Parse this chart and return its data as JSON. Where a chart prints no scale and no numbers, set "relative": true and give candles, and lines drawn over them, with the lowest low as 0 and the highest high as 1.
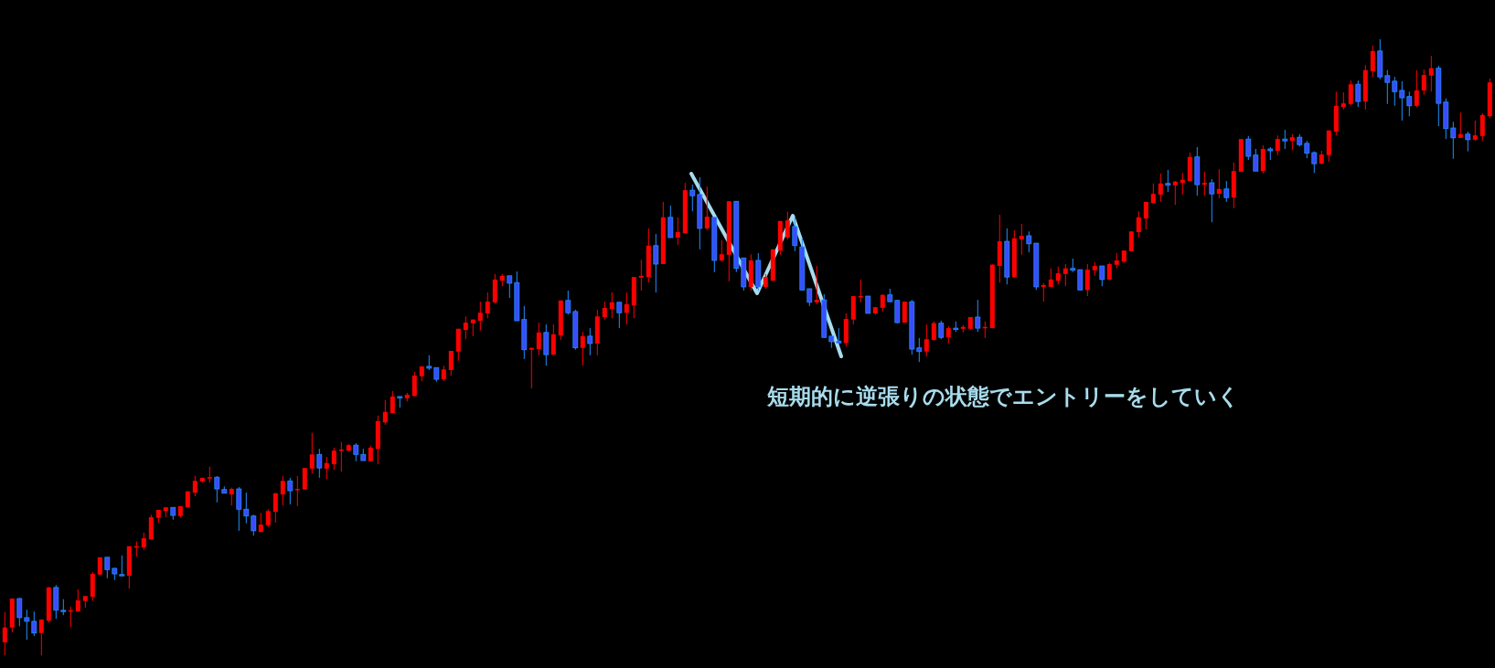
{
  "chart_data": {
    "type": "candlestick",
    "relative": true,
    "annotations": [
      "短期的に逆張りの状態でエントリーをしていく"
    ],
    "categories": [
      null,
      null,
      null,
      null,
      null,
      null,
      null,
      null,
      null,
      null,
      null,
      null,
      null,
      null,
      null,
      null,
      null,
      null,
      null,
      null,
      null,
      null,
      null,
      null,
      null,
      null,
      null,
      null,
      null,
      null,
      null,
      null,
      null,
      null,
      null,
      null,
      null,
      null,
      null,
      null,
      null,
      null,
      null,
      null,
      null,
      null,
      null,
      null,
      null,
      null,
      null,
      null,
      null,
      null,
      null,
      null,
      null,
      null,
      null,
      null,
      null,
      null,
      null,
      null,
      null,
      null,
      null,
      null,
      null,
      null,
      null,
      null,
      null,
      null,
      null,
      null,
      null,
      null,
      null,
      null,
      null,
      null,
      null,
      null,
      null,
      null,
      null,
      null,
      null,
      null,
      null,
      null,
      null,
      null,
      null,
      null,
      null,
      null,
      null,
      null,
      null,
      null,
      null,
      null,
      null,
      null,
      null,
      null,
      null,
      null,
      null,
      null,
      null,
      null,
      null,
      null,
      null,
      null,
      null,
      null,
      null,
      null,
      null,
      null,
      null,
      null,
      null,
      null,
      null,
      null,
      null,
      null,
      null,
      null,
      null,
      null,
      null,
      null,
      null,
      null,
      null,
      null,
      null,
      null,
      null,
      null,
      null,
      null,
      null,
      null,
      null,
      null,
      null,
      null,
      null,
      null,
      null,
      null,
      null,
      null,
      null,
      null,
      null,
      null,
      null,
      null,
      null,
      null,
      null,
      null,
      null,
      null,
      null,
      null,
      null,
      null,
      null,
      null,
      null,
      null,
      null,
      null,
      null,
      null,
      null,
      null,
      null,
      null,
      null,
      null,
      null,
      null,
      null,
      null,
      null,
      null,
      null,
      null,
      null,
      null,
      null,
      null,
      null,
      null
    ],
    "ohlc": [
      [
        0.021,
        0.07,
        0,
        0.045
      ],
      [
        0.045,
        0.092,
        0.037,
        0.092
      ],
      [
        0.092,
        0.093,
        0.047,
        0.061
      ],
      [
        0.061,
        0.074,
        0.025,
        0.055
      ],
      [
        0.055,
        0.071,
        0.031,
        0.036
      ],
      [
        0.036,
        0.058,
        0,
        0.058
      ],
      [
        0.056,
        0.111,
        0.053,
        0.11
      ],
      [
        0.11,
        0.114,
        0.059,
        0.073
      ],
      [
        0.073,
        0.091,
        0.065,
        0.071
      ],
      [
        0.071,
        0.079,
        0.046,
        0.073
      ],
      [
        0.071,
        0.107,
        0.071,
        0.089
      ],
      [
        0.088,
        0.096,
        0.077,
        0.096
      ],
      [
        0.095,
        0.135,
        0.088,
        0.132
      ],
      [
        0.131,
        0.159,
        0.131,
        0.159
      ],
      [
        0.159,
        0.159,
        0.125,
        0.139
      ],
      [
        0.141,
        0.142,
        0.122,
        0.132
      ],
      [
        0.131,
        0.162,
        0.129,
        0.13
      ],
      [
        0.129,
        0.177,
        0.108,
        0.177
      ],
      [
        0.175,
        0.185,
        0.16,
        0.177
      ],
      [
        0.175,
        0.199,
        0.171,
        0.19
      ],
      [
        0.188,
        0.228,
        0.188,
        0.224
      ],
      [
        0.223,
        0.236,
        0.215,
        0.236
      ],
      [
        0.234,
        0.24,
        0.224,
        0.24
      ],
      [
        0.24,
        0.24,
        0.22,
        0.227
      ],
      [
        0.226,
        0.242,
        0.224,
        0.242
      ],
      [
        0.24,
        0.266,
        0.24,
        0.266
      ],
      [
        0.264,
        0.291,
        0.258,
        0.283
      ],
      [
        0.282,
        0.288,
        0.28,
        0.288
      ],
      [
        0.288,
        0.306,
        0.28,
        0.289
      ],
      [
        0.289,
        0.291,
        0.248,
        0.27
      ],
      [
        0.269,
        0.274,
        0.263,
        0.263
      ],
      [
        0.261,
        0.272,
        0.243,
        0.27
      ],
      [
        0.27,
        0.273,
        0.202,
        0.237
      ],
      [
        0.237,
        0.264,
        0.214,
        0.226
      ],
      [
        0.226,
        0.228,
        0.194,
        0.202
      ],
      [
        0.2,
        0.231,
        0.2,
        0.212
      ],
      [
        0.211,
        0.237,
        0.208,
        0.234
      ],
      [
        0.233,
        0.263,
        0.215,
        0.263
      ],
      [
        0.261,
        0.291,
        0.243,
        0.283
      ],
      [
        0.283,
        0.288,
        0.245,
        0.267
      ],
      [
        0.269,
        0.291,
        0.242,
        0.27
      ],
      [
        0.269,
        0.304,
        0.269,
        0.304
      ],
      [
        0.303,
        0.361,
        0.295,
        0.326
      ],
      [
        0.326,
        0.335,
        0.288,
        0.304
      ],
      [
        0.303,
        0.322,
        0.286,
        0.312
      ],
      [
        0.31,
        0.337,
        0.301,
        0.332
      ],
      [
        0.332,
        0.346,
        0.298,
        0.334
      ],
      [
        0.332,
        0.343,
        0.331,
        0.341
      ],
      [
        0.341,
        0.344,
        0.315,
        0.326
      ],
      [
        0.326,
        0.335,
        0.316,
        0.316
      ],
      [
        0.315,
        0.34,
        0.315,
        0.337
      ],
      [
        0.335,
        0.389,
        0.31,
        0.38
      ],
      [
        0.378,
        0.414,
        0.374,
        0.395
      ],
      [
        0.393,
        0.429,
        0.393,
        0.42
      ],
      [
        0.42,
        0.42,
        0.402,
        0.418
      ],
      [
        0.417,
        0.426,
        0.412,
        0.423
      ],
      [
        0.421,
        0.46,
        0.42,
        0.454
      ],
      [
        0.453,
        0.469,
        0.445,
        0.469
      ],
      [
        0.469,
        0.487,
        0.463,
        0.466
      ],
      [
        0.467,
        0.467,
        0.444,
        0.448
      ],
      [
        0.448,
        0.47,
        0.445,
        0.464
      ],
      [
        0.463,
        0.494,
        0.454,
        0.494
      ],
      [
        0.493,
        0.53,
        0.478,
        0.53
      ],
      [
        0.528,
        0.55,
        0.513,
        0.54
      ],
      [
        0.539,
        0.545,
        0.518,
        0.545
      ],
      [
        0.543,
        0.574,
        0.527,
        0.556
      ],
      [
        0.555,
        0.589,
        0.547,
        0.574
      ],
      [
        0.573,
        0.619,
        0.571,
        0.61
      ],
      [
        0.608,
        0.619,
        0.599,
        0.616
      ],
      [
        0.616,
        0.616,
        0.58,
        0.604
      ],
      [
        0.605,
        0.623,
        0.543,
        0.543
      ],
      [
        0.545,
        0.567,
        0.481,
        0.496
      ],
      [
        0.496,
        0.499,
        0.433,
        0.499
      ],
      [
        0.497,
        0.54,
        0.487,
        0.524
      ],
      [
        0.524,
        0.537,
        0.47,
        0.488
      ],
      [
        0.488,
        0.537,
        0.487,
        0.521
      ],
      [
        0.519,
        0.576,
        0.512,
        0.576
      ],
      [
        0.576,
        0.592,
        0.553,
        0.556
      ],
      [
        0.558,
        0.561,
        0.496,
        0.499
      ],
      [
        0.499,
        0.525,
        0.47,
        0.518
      ],
      [
        0.518,
        0.531,
        0.487,
        0.506
      ],
      [
        0.506,
        0.561,
        0.487,
        0.55
      ],
      [
        0.549,
        0.574,
        0.545,
        0.564
      ],
      [
        0.562,
        0.589,
        0.547,
        0.573
      ],
      [
        0.573,
        0.573,
        0.531,
        0.556
      ],
      [
        0.556,
        0.589,
        0.537,
        0.57
      ],
      [
        0.568,
        0.614,
        0.547,
        0.614
      ],
      [
        0.613,
        0.642,
        0.592,
        0.616
      ],
      [
        0.614,
        0.693,
        0.605,
        0.665
      ],
      [
        0.665,
        0.684,
        0.589,
        0.635
      ],
      [
        0.635,
        0.736,
        0.635,
        0.711
      ],
      [
        0.711,
        0.73,
        0.678,
        0.678
      ],
      [
        0.678,
        0.711,
        0.666,
        0.687
      ],
      [
        0.685,
        0.767,
        0.685,
        0.755
      ],
      [
        0.755,
        0.764,
        0.721,
        0.746
      ],
      [
        0.748,
        0.776,
        0.659,
        0.693
      ],
      [
        0.693,
        0.761,
        0.69,
        0.712
      ],
      [
        0.711,
        0.711,
        0.622,
        0.641
      ],
      [
        0.641,
        0.674,
        0.639,
        0.651
      ],
      [
        0.65,
        0.737,
        0.607,
        0.737
      ],
      [
        0.737,
        0.737,
        0.622,
        0.628
      ],
      [
        0.645,
        0.645,
        0.592,
        0.598
      ],
      [
        0.598,
        0.651,
        0.592,
        0.641
      ],
      [
        0.641,
        0.653,
        0.592,
        0.598
      ],
      [
        0.598,
        0.619,
        0.595,
        0.614
      ],
      [
        0.608,
        0.659,
        0.608,
        0.659
      ],
      [
        0.657,
        0.705,
        0.65,
        0.705
      ],
      [
        0.678,
        0.72,
        0.675,
        0.706
      ],
      [
        0.696,
        0.711,
        0.656,
        0.665
      ],
      [
        0.663,
        0.678,
        0.592,
        0.593
      ],
      [
        0.595,
        0.595,
        0.567,
        0.573
      ],
      [
        0.573,
        0.632,
        0.57,
        0.577
      ],
      [
        0.577,
        0.586,
        0.515,
        0.516
      ],
      [
        0.518,
        0.518,
        0.499,
        0.509
      ],
      [
        0.51,
        0.531,
        0.507,
        0.507
      ],
      [
        0.507,
        0.555,
        0.501,
        0.546
      ],
      [
        0.545,
        0.583,
        0.537,
        0.583
      ],
      [
        0.582,
        0.61,
        0.573,
        0.583
      ],
      [
        0.583,
        0.583,
        0.555,
        0.555
      ],
      [
        0.555,
        0.565,
        0.553,
        0.565
      ],
      [
        0.564,
        0.586,
        0.558,
        0.585
      ],
      [
        0.585,
        0.595,
        0.573,
        0.574
      ],
      [
        0.576,
        0.577,
        0.539,
        0.54
      ],
      [
        0.54,
        0.574,
        0.54,
        0.574
      ],
      [
        0.574,
        0.577,
        0.488,
        0.497
      ],
      [
        0.499,
        0.515,
        0.476,
        0.493
      ],
      [
        0.493,
        0.537,
        0.485,
        0.513
      ],
      [
        0.512,
        0.542,
        0.51,
        0.539
      ],
      [
        0.539,
        0.543,
        0.513,
        0.516
      ],
      [
        0.516,
        0.534,
        0.506,
        0.531
      ],
      [
        0.531,
        0.542,
        0.525,
        0.53
      ],
      [
        0.53,
        0.536,
        0.524,
        0.533
      ],
      [
        0.53,
        0.549,
        0.528,
        0.549
      ],
      [
        0.549,
        0.577,
        0.525,
        0.531
      ],
      [
        0.531,
        0.542,
        0.515,
        0.533
      ],
      [
        0.531,
        0.635,
        0.531,
        0.634
      ],
      [
        0.632,
        0.715,
        0.605,
        0.672
      ],
      [
        0.672,
        0.693,
        0.602,
        0.614
      ],
      [
        0.614,
        0.69,
        0.613,
        0.677
      ],
      [
        0.675,
        0.7,
        0.65,
        0.681
      ],
      [
        0.681,
        0.688,
        0.654,
        0.668
      ],
      [
        0.669,
        0.669,
        0.593,
        0.598
      ],
      [
        0.598,
        0.604,
        0.574,
        0.601
      ],
      [
        0.598,
        0.628,
        0.598,
        0.61
      ],
      [
        0.608,
        0.631,
        0.602,
        0.62
      ],
      [
        0.619,
        0.635,
        0.599,
        0.628
      ],
      [
        0.628,
        0.644,
        0.622,
        0.625
      ],
      [
        0.626,
        0.626,
        0.593,
        0.593
      ],
      [
        0.593,
        0.635,
        0.583,
        0.626
      ],
      [
        0.625,
        0.638,
        0.616,
        0.632
      ],
      [
        0.632,
        0.632,
        0.599,
        0.61
      ],
      [
        0.61,
        0.637,
        0.608,
        0.635
      ],
      [
        0.634,
        0.653,
        0.628,
        0.641
      ],
      [
        0.639,
        0.657,
        0.637,
        0.657
      ],
      [
        0.656,
        0.688,
        0.656,
        0.688
      ],
      [
        0.687,
        0.721,
        0.678,
        0.711
      ],
      [
        0.709,
        0.736,
        0.691,
        0.736
      ],
      [
        0.734,
        0.766,
        0.734,
        0.749
      ],
      [
        0.748,
        0.782,
        0.736,
        0.766
      ],
      [
        0.766,
        0.788,
        0.752,
        0.763
      ],
      [
        0.763,
        0.77,
        0.731,
        0.769
      ],
      [
        0.767,
        0.783,
        0.748,
        0.772
      ],
      [
        0.77,
        0.816,
        0.77,
        0.809
      ],
      [
        0.809,
        0.825,
        0.746,
        0.764
      ],
      [
        0.764,
        0.785,
        0.746,
        0.767
      ],
      [
        0.767,
        0.773,
        0.703,
        0.749
      ],
      [
        0.749,
        0.789,
        0.742,
        0.757
      ],
      [
        0.757,
        0.77,
        0.736,
        0.743
      ],
      [
        0.743,
        0.8,
        0.726,
        0.786
      ],
      [
        0.785,
        0.838,
        0.785,
        0.838
      ],
      [
        0.838,
        0.843,
        0.804,
        0.81
      ],
      [
        0.812,
        0.822,
        0.786,
        0.786
      ],
      [
        0.786,
        0.828,
        0.782,
        0.822
      ],
      [
        0.822,
        0.825,
        0.804,
        0.819
      ],
      [
        0.819,
        0.844,
        0.812,
        0.838
      ],
      [
        0.838,
        0.853,
        0.822,
        0.835
      ],
      [
        0.835,
        0.846,
        0.82,
        0.841
      ],
      [
        0.841,
        0.846,
        0.826,
        0.829
      ],
      [
        0.831,
        0.835,
        0.807,
        0.815
      ],
      [
        0.816,
        0.818,
        0.783,
        0.798
      ],
      [
        0.798,
        0.819,
        0.797,
        0.813
      ],
      [
        0.812,
        0.852,
        0.801,
        0.852
      ],
      [
        0.85,
        0.915,
        0.844,
        0.892
      ],
      [
        0.89,
        0.914,
        0.886,
        0.896
      ],
      [
        0.895,
        0.933,
        0.893,
        0.927
      ],
      [
        0.927,
        0.933,
        0.89,
        0.899
      ],
      [
        0.899,
        0.958,
        0.886,
        0.95
      ],
      [
        0.948,
        0.99,
        0.939,
        0.981
      ],
      [
        0.981,
        1,
        0.935,
        0.939
      ],
      [
        0.941,
        0.95,
        0.895,
        0.93
      ],
      [
        0.932,
        0.939,
        0.892,
        0.915
      ],
      [
        0.917,
        0.932,
        0.868,
        0.905
      ],
      [
        0.907,
        0.915,
        0.875,
        0.892
      ],
      [
        0.892,
        0.95,
        0.89,
        0.917
      ],
      [
        0.917,
        0.951,
        0.91,
        0.942
      ],
      [
        0.941,
        0.973,
        0.915,
        0.953
      ],
      [
        0.953,
        0.957,
        0.859,
        0.896
      ],
      [
        0.898,
        0.904,
        0.838,
        0.855
      ],
      [
        0.856,
        0.866,
        0.806,
        0.84
      ],
      [
        0.84,
        0.881,
        0.84,
        0.846
      ],
      [
        0.846,
        0.85,
        0.818,
        0.837
      ],
      [
        0.837,
        0.868,
        0.835,
        0.844
      ],
      [
        0.843,
        0.88,
        0.835,
        0.877
      ],
      [
        0.875,
        0.936,
        0.872,
        0.93
      ]
    ]
  }
}
